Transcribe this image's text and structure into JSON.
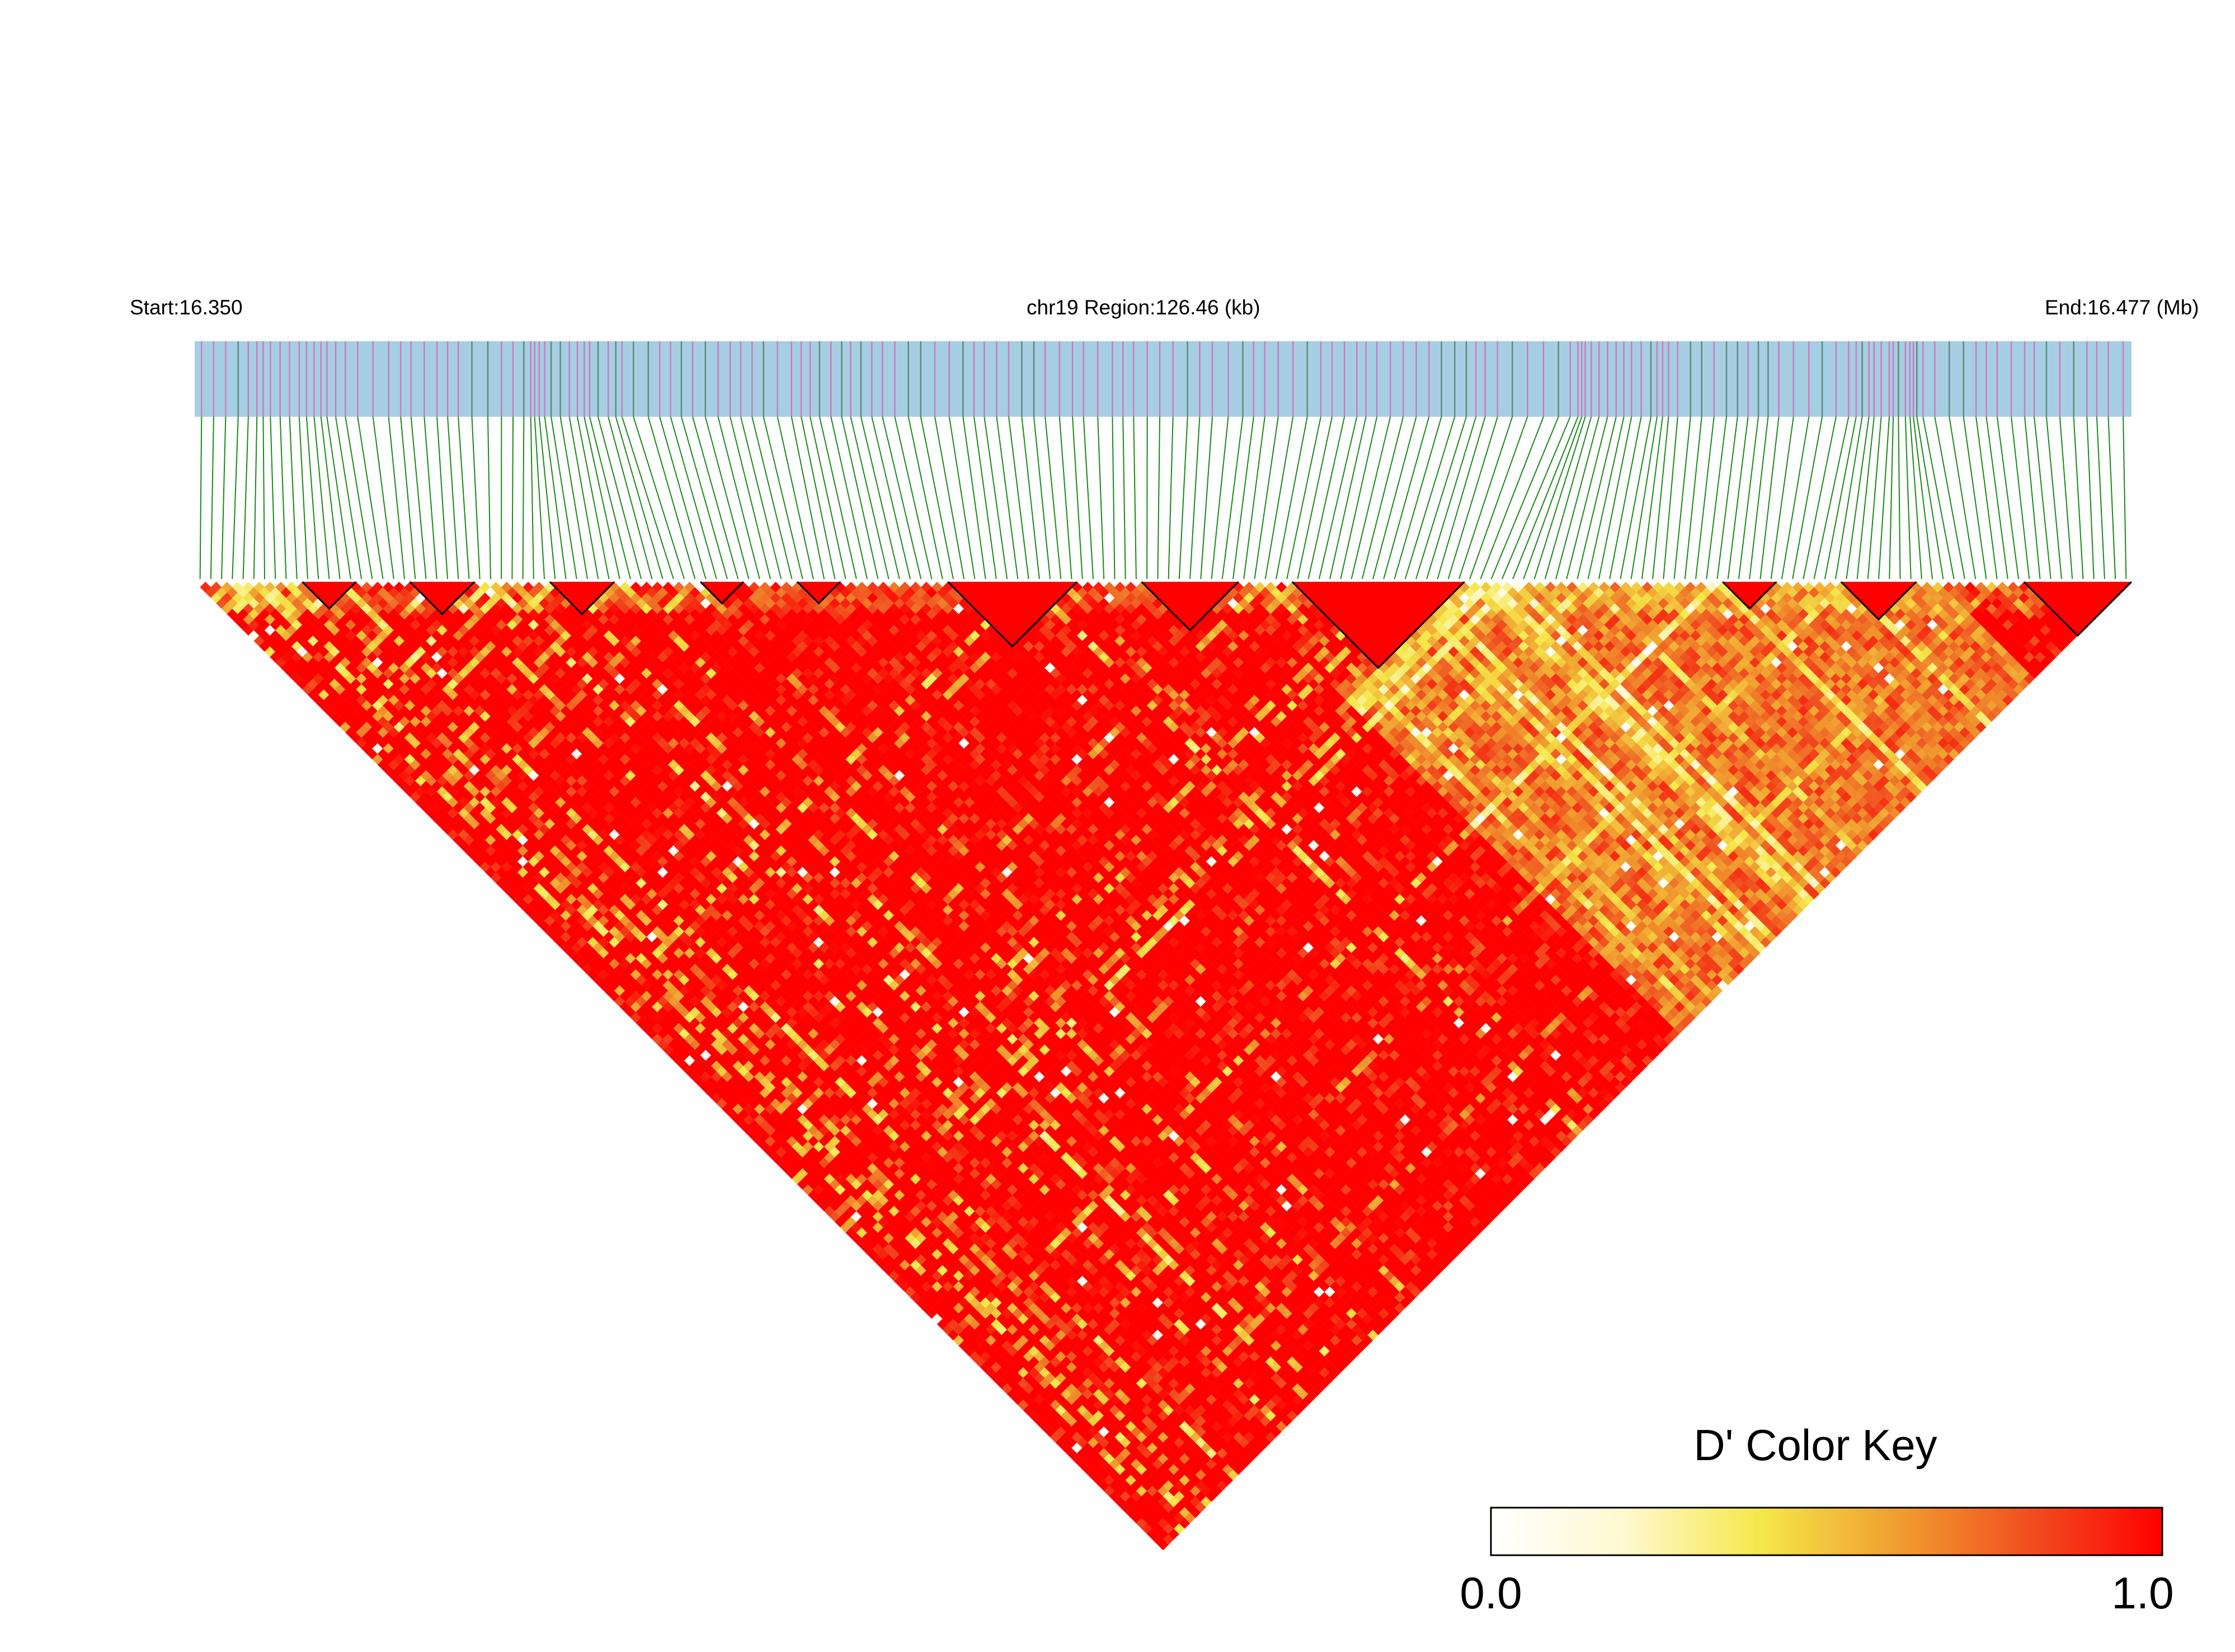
{
  "chart_data": {
    "type": "heatmap",
    "subtype": "linkage-disequilibrium triangle",
    "header": {
      "start_label": "Start:16.350",
      "region_label": "chr19 Region:126.46 (kb)",
      "end_label": "End:16.477 (Mb)"
    },
    "region": {
      "chromosome": "chr19",
      "start_mb": 16.35,
      "end_mb": 16.477,
      "length_kb": 126.46
    },
    "snp_track": {
      "background": "#a6cee3",
      "marker_colors": [
        "#cc79c0",
        "#5f8a7a"
      ],
      "connector_color": "#1a8a1a"
    },
    "color_key": {
      "title": "D' Color Key",
      "min_label": "0.0",
      "max_label": "1.0",
      "stops": [
        "#ffffff",
        "#fff8d0",
        "#f5e84a",
        "#f0a030",
        "#f05020",
        "#ff0000"
      ]
    },
    "haplotype_block_outline": "#000000",
    "measure": "D'"
  }
}
